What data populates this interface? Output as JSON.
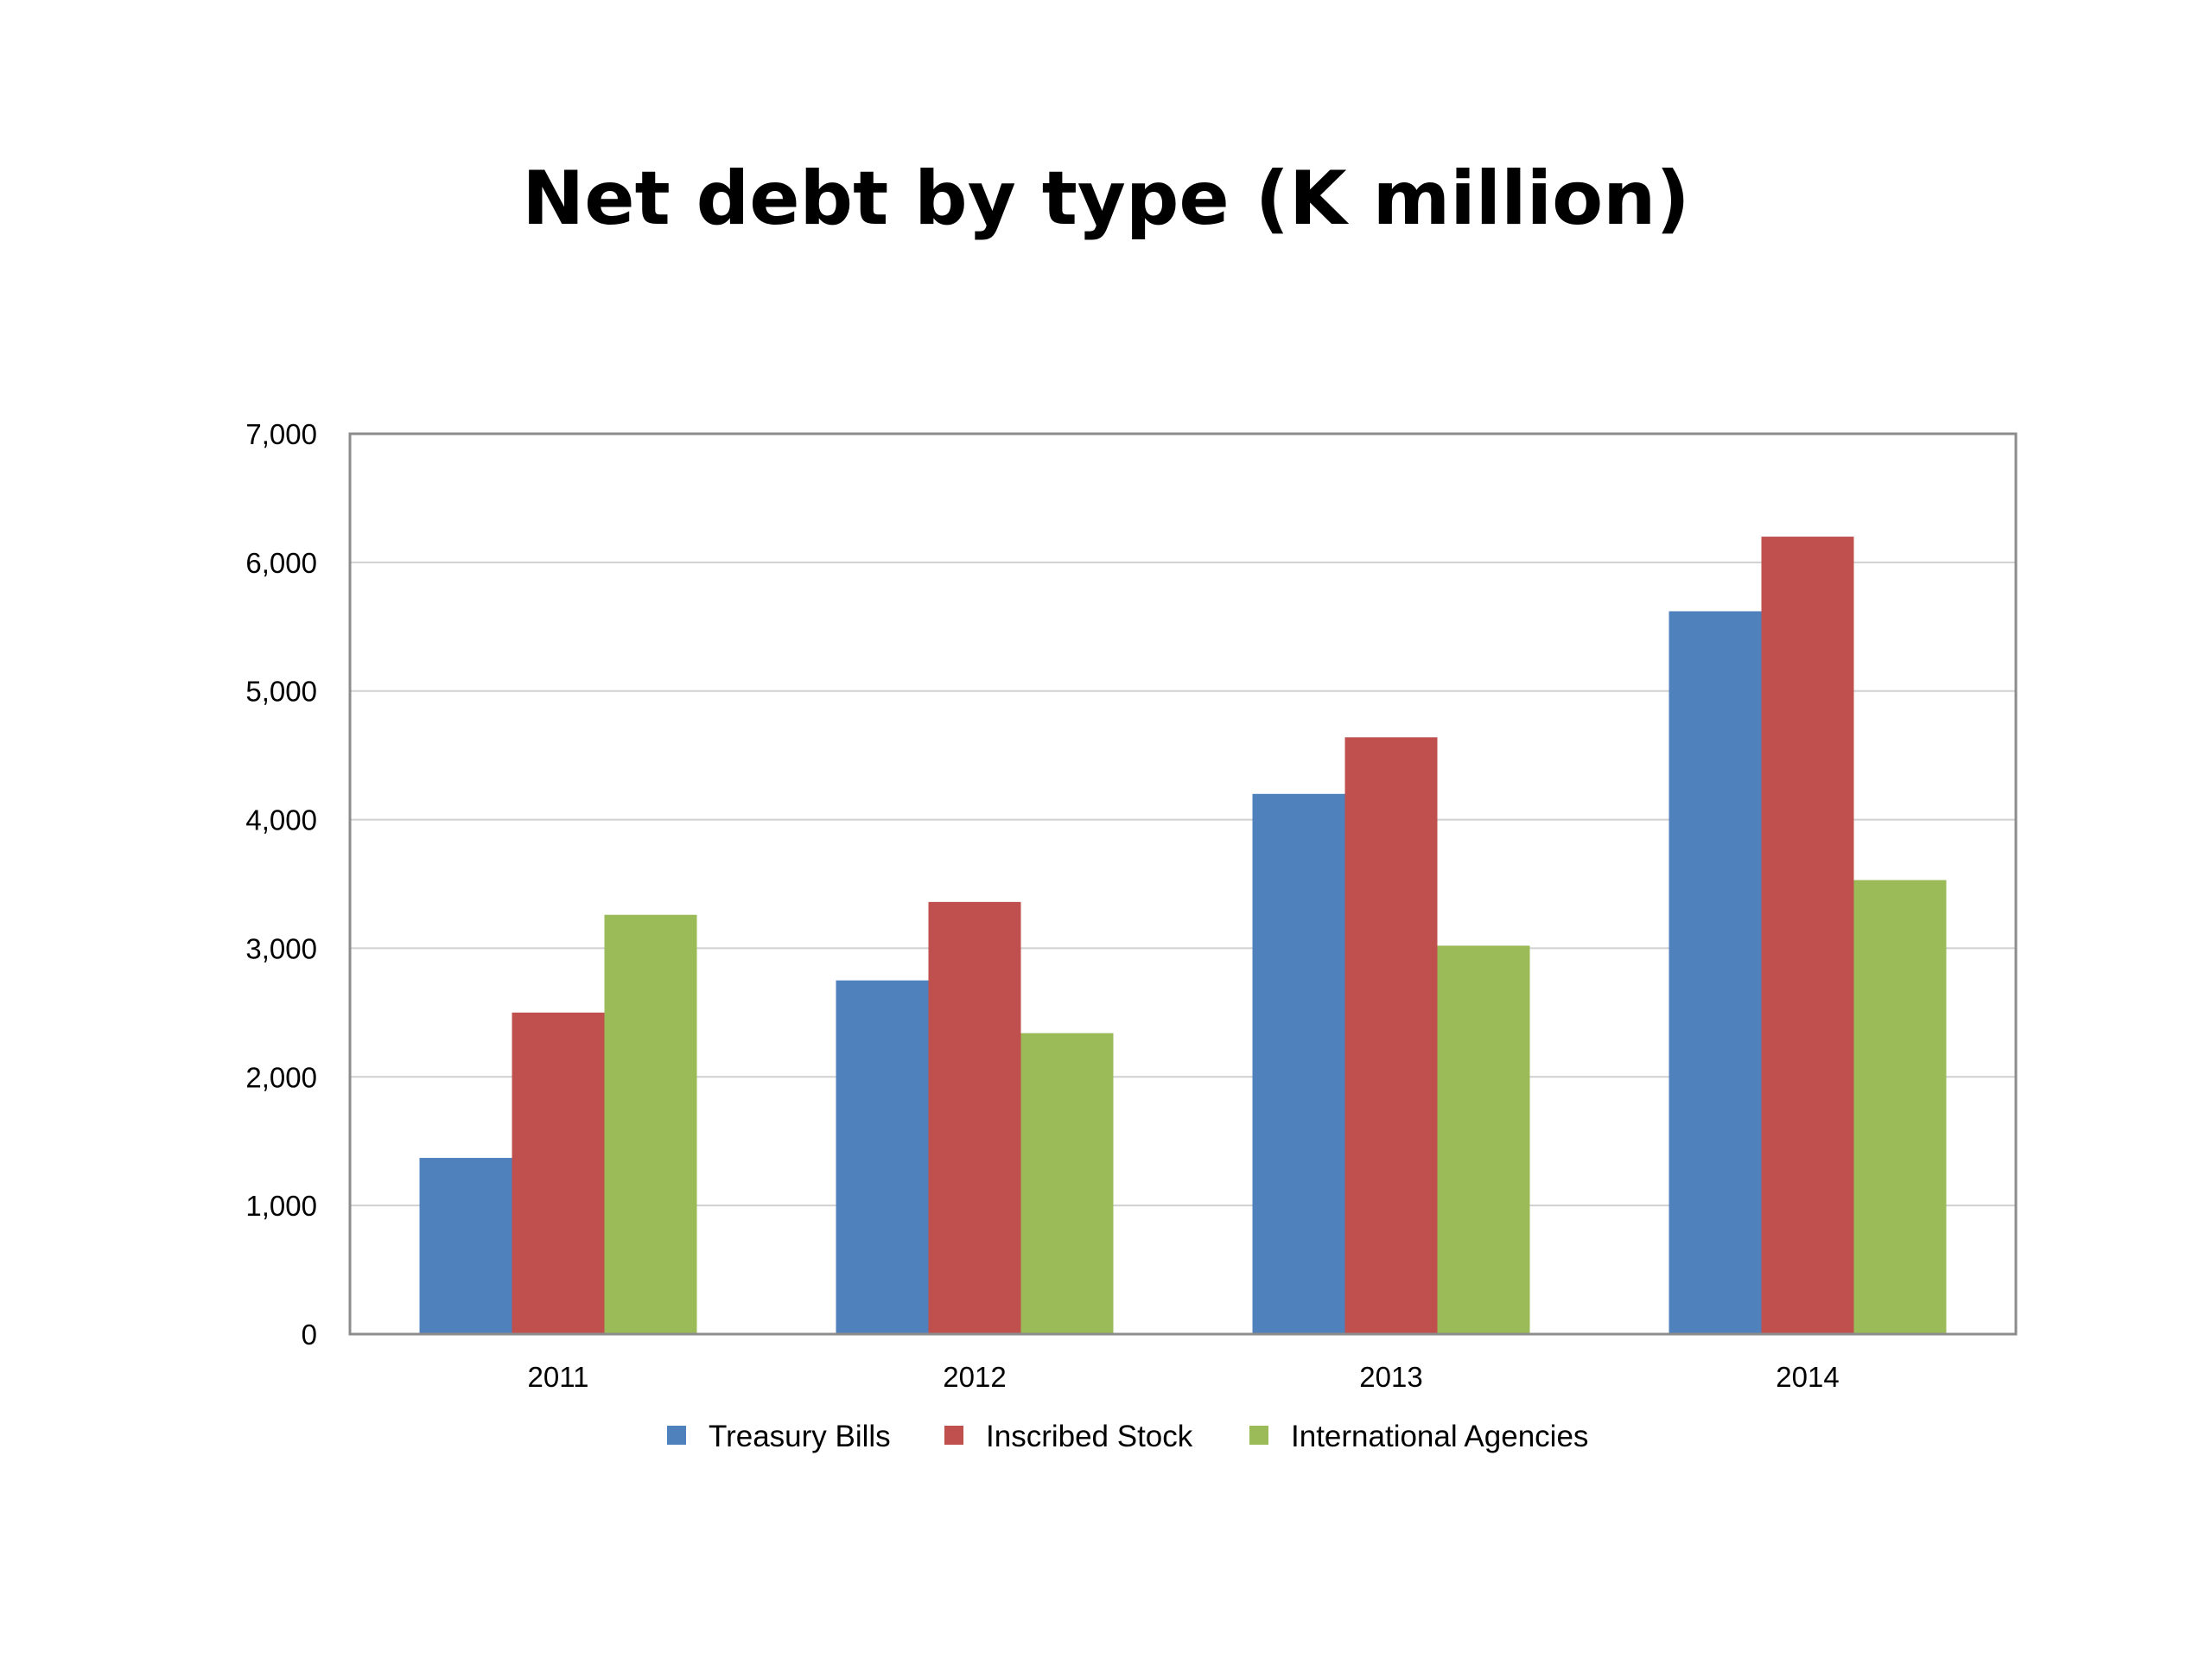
{
  "chart_data": {
    "type": "bar",
    "title": "Net debt by type (K million)",
    "xlabel": "",
    "ylabel": "",
    "categories": [
      "2011",
      "2012",
      "2013",
      "2014"
    ],
    "series": [
      {
        "name": "Treasury Bills",
        "color": "#4F81BD",
        "values": [
          1370,
          2750,
          4200,
          5620
        ]
      },
      {
        "name": "Inscribed Stock",
        "color": "#C0504D",
        "values": [
          2500,
          3360,
          4640,
          6200
        ]
      },
      {
        "name": "International Agencies",
        "color": "#9BBB59",
        "values": [
          3260,
          2340,
          3020,
          3530
        ]
      }
    ],
    "ylim": [
      0,
      7000
    ],
    "yticks": [
      "0",
      "1,000",
      "2,000",
      "3,000",
      "4,000",
      "5,000",
      "6,000",
      "7,000"
    ],
    "ytick_values": [
      0,
      1000,
      2000,
      3000,
      4000,
      5000,
      6000,
      7000
    ],
    "grid": true,
    "legend_position": "bottom"
  }
}
